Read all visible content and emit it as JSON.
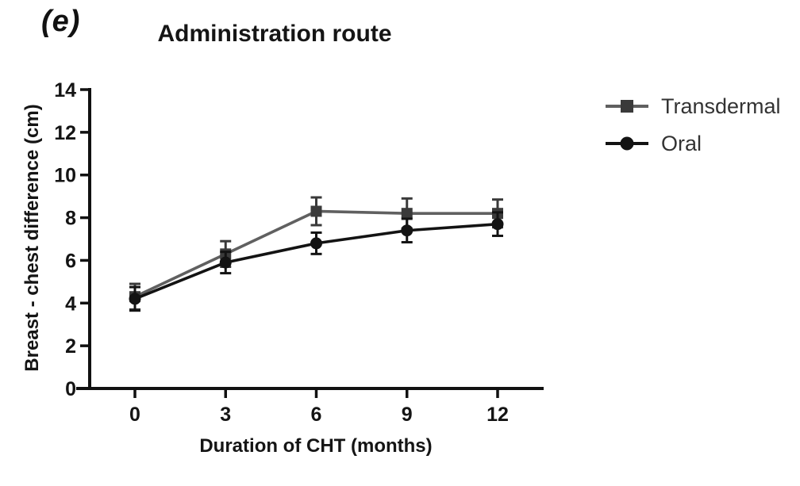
{
  "figure": {
    "panel_label": "(e)",
    "background_color": "#ffffff",
    "axis_color": "#111111",
    "tick_label_color": "#141414",
    "legend_text_color": "#333333"
  },
  "chart_data": {
    "type": "line",
    "title": "Administration route",
    "xlabel": "Duration of CHT (months)",
    "ylabel": "Breast - chest difference (cm)",
    "x": [
      0,
      3,
      6,
      9,
      12
    ],
    "xticks": [
      0,
      3,
      6,
      9,
      12
    ],
    "yticks": [
      0,
      2,
      4,
      6,
      8,
      10,
      12,
      14
    ],
    "xlim": [
      -2,
      13.5
    ],
    "ylim": [
      0,
      14
    ],
    "grid": false,
    "legend_position": "right-outside",
    "error_bars": true,
    "series": [
      {
        "name": "Transdermal",
        "marker": "square",
        "line_color": "#606060",
        "marker_color": "#3a3a3a",
        "error_color": "#3a3a3a",
        "values": [
          4.3,
          6.3,
          8.3,
          8.2,
          8.2
        ],
        "errors": [
          0.6,
          0.6,
          0.65,
          0.7,
          0.65
        ]
      },
      {
        "name": "Oral",
        "marker": "circle",
        "line_color": "#131313",
        "marker_color": "#131313",
        "error_color": "#131313",
        "values": [
          4.2,
          5.9,
          6.8,
          7.4,
          7.7
        ],
        "errors": [
          0.55,
          0.5,
          0.5,
          0.55,
          0.55
        ]
      }
    ]
  }
}
